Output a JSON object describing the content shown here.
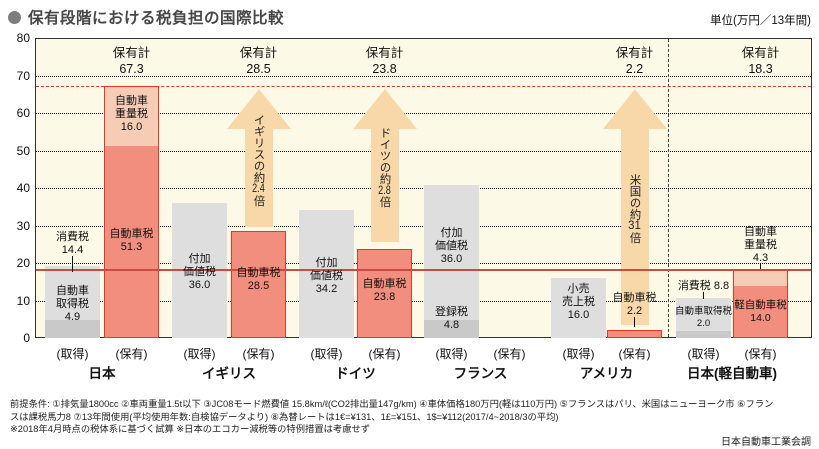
{
  "header": {
    "title": "保有段階における税負担の国際比較",
    "unit": "単位(万円／13年間)"
  },
  "colors": {
    "chart_bg": "#fdf9e7",
    "frame": "#333333",
    "gray_light": "#dedede",
    "gray_dark": "#c9c9c9",
    "salmon": "#f28e7e",
    "pink": "#f7ccb4",
    "red_border": "#e6372b",
    "arrow_fill": "#f8d8a9",
    "dashed_line": "#e6372b",
    "solid_line": "#c94b42"
  },
  "chart_data": {
    "type": "bar",
    "title": "保有段階における税負担の国際比較",
    "unit": "万円/13年間",
    "ylim": [
      0,
      80
    ],
    "yticks": [
      0,
      10,
      20,
      30,
      40,
      50,
      60,
      70,
      80
    ],
    "grid_values": [
      10,
      20,
      30,
      40,
      50,
      60,
      70
    ],
    "separator_x": 668,
    "reference_lines": [
      {
        "value": 67.3,
        "style": "dashed"
      },
      {
        "value": 18.3,
        "style": "solid"
      }
    ],
    "groups": [
      {
        "name": "日本",
        "bars": [
          {
            "kind": "acquisition",
            "x": 45,
            "axis_label": "(取得)",
            "segments": [
              {
                "name": "自動車取得税",
                "value": 4.9,
                "color": "gray_dark"
              },
              {
                "name": "消費税",
                "value": 14.4,
                "color": "gray_light"
              }
            ],
            "labels": [
              {
                "lines": [
                  "自動車",
                  "取得税",
                  "4.9"
                ],
                "center_u": 9
              },
              {
                "lines": [
                  "消費税",
                  "14.4"
                ],
                "center_u": 25,
                "tick_to_u": 17.5
              }
            ]
          },
          {
            "kind": "ownership",
            "x": 104,
            "axis_label": "(保有)",
            "border": true,
            "segments": [
              {
                "name": "自動車税",
                "value": 51.3,
                "color": "salmon"
              },
              {
                "name": "自動車重量税",
                "value": 16.0,
                "color": "pink"
              }
            ],
            "labels": [
              {
                "lines": [
                  "自動車税",
                  "51.3"
                ],
                "center_u": 26
              },
              {
                "lines": [
                  "自動車",
                  "重量税",
                  "16.0"
                ],
                "center_u": 59.5
              }
            ]
          }
        ],
        "total": {
          "title": "保有計",
          "value": "67.3",
          "center_u": 74
        }
      },
      {
        "name": "イギリス",
        "bars": [
          {
            "kind": "acquisition",
            "x": 172,
            "axis_label": "(取得)",
            "segments": [
              {
                "name": "付加価値税",
                "value": 36.0,
                "color": "gray_light"
              }
            ],
            "labels": [
              {
                "lines": [
                  "付加",
                  "価値税",
                  "36.0"
                ],
                "center_u": 17.5
              }
            ]
          },
          {
            "kind": "ownership",
            "x": 231,
            "axis_label": "(保有)",
            "border": true,
            "segments": [
              {
                "name": "自動車税",
                "value": 28.5,
                "color": "salmon"
              }
            ],
            "labels": [
              {
                "lines": [
                  "自動車税",
                  "28.5"
                ],
                "center_u": 15.5
              }
            ]
          }
        ],
        "total": {
          "title": "保有計",
          "value": "28.5",
          "center_u": 74
        },
        "arrow": {
          "text_parts": [
            "イギリスの約",
            "2.4",
            "倍"
          ],
          "from_u": 29.5,
          "tip_u": 66.5
        }
      },
      {
        "name": "ドイツ",
        "bars": [
          {
            "kind": "acquisition",
            "x": 299,
            "axis_label": "(取得)",
            "segments": [
              {
                "name": "付加価値税",
                "value": 34.2,
                "color": "gray_light"
              }
            ],
            "labels": [
              {
                "lines": [
                  "付加",
                  "価値税",
                  "34.2"
                ],
                "center_u": 16.5
              }
            ]
          },
          {
            "kind": "ownership",
            "x": 357,
            "axis_label": "(保有)",
            "border": true,
            "segments": [
              {
                "name": "自動車税",
                "value": 23.8,
                "color": "salmon"
              }
            ],
            "labels": [
              {
                "lines": [
                  "自動車税",
                  "23.8"
                ],
                "center_u": 12.5
              }
            ]
          }
        ],
        "total": {
          "title": "保有計",
          "value": "23.8",
          "center_u": 74
        },
        "arrow": {
          "text_parts": [
            "ドイツの約",
            "2.8",
            "倍"
          ],
          "from_u": 25.5,
          "tip_u": 66.5
        }
      },
      {
        "name": "フランス",
        "bars": [
          {
            "kind": "acquisition",
            "x": 424,
            "axis_label": "(取得)",
            "segments": [
              {
                "name": "登録税",
                "value": 4.8,
                "color": "gray_dark"
              },
              {
                "name": "付加価値税",
                "value": 36.0,
                "color": "gray_light"
              }
            ],
            "labels": [
              {
                "lines": [
                  "付加",
                  "価値税",
                  "36.0"
                ],
                "center_u": 24.5
              },
              {
                "lines": [
                  "登録税",
                  "4.8"
                ],
                "center_u": 5
              }
            ]
          },
          {
            "kind": "ownership",
            "x": 482,
            "axis_label": "(保有)",
            "segments": [],
            "labels": []
          }
        ]
      },
      {
        "name": "アメリカ",
        "bars": [
          {
            "kind": "acquisition",
            "x": 551,
            "axis_label": "(取得)",
            "segments": [
              {
                "name": "小売売上税",
                "value": 16.0,
                "color": "gray_light"
              }
            ],
            "labels": [
              {
                "lines": [
                  "小売",
                  "売上税",
                  "16.0"
                ],
                "center_u": 9.5
              }
            ]
          },
          {
            "kind": "ownership",
            "x": 607,
            "axis_label": "(保有)",
            "border": true,
            "segments": [
              {
                "name": "自動車税",
                "value": 2.2,
                "color": "salmon"
              }
            ],
            "labels": [
              {
                "lines": [
                  "自動車税",
                  "2.2"
                ],
                "center_u": 8.8,
                "tick_to_u": 3
              }
            ]
          }
        ],
        "total": {
          "title": "保有計",
          "value": "2.2",
          "center_u": 74
        },
        "arrow": {
          "text_parts": [
            "米国の約",
            "31",
            "倍"
          ],
          "from_u": 3.5,
          "tip_u": 66.5
        }
      },
      {
        "name": "日本(軽自動車)",
        "bars": [
          {
            "kind": "acquisition",
            "x": 676,
            "axis_label": "(取得)",
            "segments": [
              {
                "name": "自動車取得税",
                "value": 2.0,
                "color": "gray_dark"
              },
              {
                "name": "消費税",
                "value": 8.8,
                "color": "gray_light"
              }
            ],
            "labels": [
              {
                "lines": [
                  "自動車取得税",
                  "2.0"
                ],
                "center_u": 5.3,
                "fs": 9.5
              },
              {
                "lines": [
                  "消費税 8.8"
                ],
                "center_u": 13.8,
                "tick_to_u": 10.5
              }
            ]
          },
          {
            "kind": "ownership",
            "x": 733,
            "axis_label": "(保有)",
            "border": true,
            "segments": [
              {
                "name": "軽自動車税",
                "value": 14.0,
                "color": "salmon"
              },
              {
                "name": "自動車重量税",
                "value": 4.3,
                "color": "pink"
              }
            ],
            "labels": [
              {
                "lines": [
                  "軽自動車税",
                  "14.0"
                ],
                "center_u": 7,
                "fs": 10.5
              },
              {
                "lines": [
                  "自動車",
                  "重量税",
                  "4.3"
                ],
                "center_u": 24.8,
                "tick_to_u": 18.5
              }
            ]
          }
        ],
        "total": {
          "title": "保有計",
          "value": "18.3",
          "center_u": 74
        }
      }
    ]
  },
  "footnotes": {
    "line1": "前提条件: ①排気量1800cc ②車両重量1.5t以下 ③JC08モード燃費値 15.8km/ℓ(CO2排出量147g/km) ④車体価格180万円(軽は110万円) ⑤フランスはパリ、米国はニューヨーク市 ⑥フラン",
    "line2": "スは課税馬力8 ⑦13年間使用(平均使用年数:自検協データより) ⑧為替レートは1€=¥131、1£=¥151、1$=¥112(2017/4~2018/3の平均)",
    "line3": "※2018年4月時点の税体系に基づく試算 ※日本のエコカー減税等の特例措置は考慮せず",
    "source": "日本自動車工業会調"
  }
}
